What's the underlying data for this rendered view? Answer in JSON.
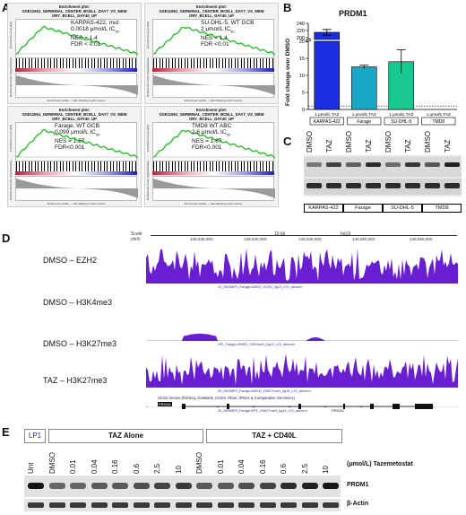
{
  "panelA": {
    "label": "A",
    "plots": [
      {
        "title_line1": "Enrichment plot:",
        "title_line2": "GSE11961_GERMINAL_CENTER_BCELL_DAY7_VS_MEM",
        "title_line3": "ORY_BCELL_DAY40_UP",
        "line1": "KARPAS-422, mut",
        "line2": "0.0018 μmol/L IC",
        "line2_sub": "50",
        "line3": "NES = 1.4",
        "line4": "FDR < 0.01"
      },
      {
        "title_line1": "Enrichment plot:",
        "title_line2": "GSE11961_GERMINAL_CENTER_BCELL_DAY7_VS_MEM",
        "title_line3": "ORY_BCELL_DAY40_UP",
        "line1": "SU-DHL-5, WT GCB",
        "line2": "2 μmol/L IC",
        "line2_sub": "50",
        "line3": "NES = 1.4",
        "line4": "FDR <0.01"
      },
      {
        "title_line1": "Enrichment plot:",
        "title_line2": "GSE11961_GERMINAL_CENTER_BCELL_DAY7_VS_MEM",
        "title_line3": "ORY_BCELL_DAY40_UP",
        "line1": "Farage, WT GCB",
        "line2": "0.099 μmol/L IC",
        "line2_sub": "50",
        "line3": "NES = 1.57",
        "line4": "FDR<0.001"
      },
      {
        "title_line1": "Enrichment plot:",
        "title_line2": "GSE11961_GERMINAL_CENTER_BCELL_DAY7_VS_MEM",
        "title_line3": "ORY_BCELL_DAY40_UP",
        "line1": "TMD8 WT ABC",
        "line2": "2.6 μmol/L IC",
        "line2_sub": "50",
        "line3": "NES = 1.67",
        "line4": "FDR<0.001"
      }
    ],
    "ylabel_top": "Enrichment score (ES)",
    "ylabel_bottom": "Ranked list metric (Signal2Noise)",
    "legend": "Enrichment profile — Hits    Ranking metric scores",
    "colors": {
      "curve": "#19c019",
      "pos": "#d2203c",
      "neg": "#2a2acc"
    }
  },
  "panelB": {
    "label": "B",
    "chart_data": {
      "type": "bar",
      "title": "PRDM1",
      "ylabel": "Fold change over DMSO",
      "categories": [
        "KARPAS-422",
        "Farage",
        "SU-DHL-5",
        "TMD8"
      ],
      "category_prefix": "1 μmol/L TAZ",
      "values": [
        215,
        12.5,
        14,
        0
      ],
      "errors": [
        8,
        0.5,
        3.5,
        0
      ],
      "colors": [
        "#1a2de0",
        "#1aa8c8",
        "#18c890",
        "#888888"
      ],
      "y_ticks_upper": [
        200,
        220,
        240
      ],
      "y_ticks_lower": [
        0,
        5,
        10,
        15,
        20
      ],
      "reference_line": 1,
      "axis_break": true
    }
  },
  "panelC": {
    "label": "C",
    "lanes": [
      "DMSO",
      "TAZ",
      "DMSO",
      "TAZ",
      "DMSO",
      "TAZ",
      "DMSO",
      "TAZ"
    ],
    "cell_lines": [
      "KARPAS-422",
      "Farage",
      "SU-DHL-5",
      "TMD8"
    ]
  },
  "panelD": {
    "label": "D",
    "scale_label": "Scale",
    "chrom_label": "chr6:",
    "scale_value": "10 kb",
    "genome": "hg19",
    "coords": [
      "146,535,000",
      "146,540,000",
      "146,545,000",
      "146,550,000",
      "146,555,000"
    ],
    "tracks": [
      {
        "name": "DMSO – EZH2",
        "ymax": "10 _",
        "ymin": "1 _",
        "caption": "24_952MEPI_Farage-DMSO_EZH2_hg19_c70_denorm"
      },
      {
        "name": "DMSO – H3K4me3",
        "ymax": "60 _",
        "ymin": "1 _",
        "caption": "HPI_Farage-DMSO_H3K4me3_hg19_c70_denorm"
      },
      {
        "name": "DMSO – H3K27me3",
        "ymax": "10 _",
        "ymin": "1 _",
        "caption": "25_952MEPI_Farage-DMSO_H3K27me3_hg19_c70_denorm"
      },
      {
        "name": "TAZ – H3K27me3",
        "ymax": "10 _",
        "ymin": "1 _",
        "caption": "25_952MEPI_Farage-EPZ_H3K27me3_hg19_c70_denorm"
      }
    ],
    "gene_caption": "UCSC Genes (RefSeq, GenBank, CCDS, Rfam, tRNAs & Comparative Genomics)",
    "gene_name": "PRDM1",
    "track_color": "#6a1ed2"
  },
  "panelE": {
    "label": "E",
    "group_lp1": "LP1",
    "group_taz": "TAZ Alone",
    "group_taz_cd40l": "TAZ + CD40L",
    "lanes": [
      "Unt",
      "DMSO",
      "0.01",
      "0.04",
      "0.16",
      "0.6",
      "2.5",
      "10",
      "DMSO",
      "0.01",
      "0.04",
      "0.16",
      "0.6",
      "2.5",
      "10"
    ],
    "unit_label": "(μmol/L) Tazemetostat",
    "band1": "PRDM1",
    "band2": "β-Actin"
  }
}
